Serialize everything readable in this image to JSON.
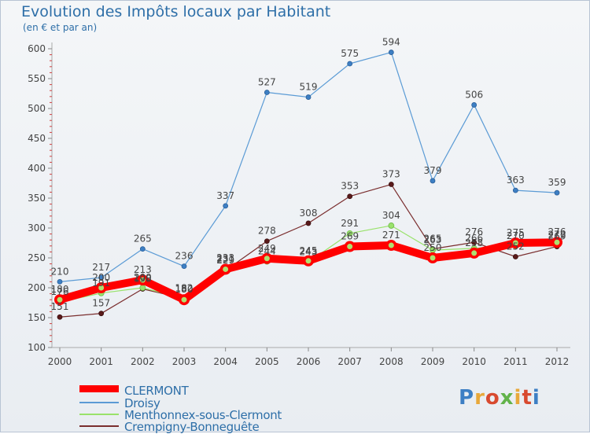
{
  "header": {
    "title": "Evolution des Impôts locaux par Habitant",
    "subtitle": "(en € et par an)"
  },
  "logo": {
    "text": "Proxiti",
    "colors": [
      "#3d7fc4",
      "#e8a83a",
      "#d84a2f",
      "#62b34a",
      "#e8a83a",
      "#d84a2f",
      "#3d7fc4"
    ]
  },
  "chart_data": {
    "type": "line",
    "title": "Evolution des Impôts locaux par Habitant",
    "subtitle": "(en € et par an)",
    "x": [
      "2000",
      "2001",
      "2002",
      "2003",
      "2004",
      "2005",
      "2006",
      "2007",
      "2008",
      "2009",
      "2010",
      "2011",
      "2012"
    ],
    "ylim": [
      100,
      600
    ],
    "yticks": [
      "100",
      "150",
      "200",
      "250",
      "300",
      "350",
      "400",
      "450",
      "500",
      "550",
      "600"
    ],
    "grid": false,
    "legend_position": "bottom-left",
    "series": [
      {
        "name": "CLERMONT",
        "color": "#ff0000",
        "values": [
          180,
          200,
          213,
          180,
          231,
          249,
          245,
          269,
          271,
          250,
          258,
          275,
          276
        ],
        "labels": [
          "180",
          "200",
          "213",
          "180",
          "231",
          "249",
          "245",
          "269",
          "271",
          "250",
          "258",
          "275",
          "276"
        ]
      },
      {
        "name": "Droisy",
        "color": "#5b9bd5",
        "values": [
          210,
          217,
          265,
          236,
          337,
          527,
          519,
          575,
          594,
          379,
          506,
          363,
          359
        ],
        "labels": [
          "210",
          "217",
          "265",
          "236",
          "337",
          "527",
          "519",
          "575",
          "594",
          "379",
          "506",
          "363",
          "359"
        ]
      },
      {
        "name": "Menthonnex-sous-Clermont",
        "color": "#99e26b",
        "values": [
          176,
          191,
          200,
          182,
          233,
          244,
          243,
          291,
          304,
          263,
          266,
          270,
          272
        ],
        "labels": [
          "176",
          "191",
          "200",
          "182",
          "233",
          "244",
          "243",
          "291",
          "304",
          "263",
          "266",
          "270",
          "272"
        ]
      },
      {
        "name": "Crempigny-Bonneguête",
        "color": "#7a2e2e",
        "values": [
          151,
          157,
          198,
          182,
          229,
          278,
          308,
          353,
          373,
          265,
          276,
          252,
          269
        ],
        "labels": [
          "151",
          "157",
          "198",
          "182",
          "229",
          "278",
          "308",
          "353",
          "373",
          "265",
          "276",
          "252",
          "269"
        ]
      }
    ]
  }
}
